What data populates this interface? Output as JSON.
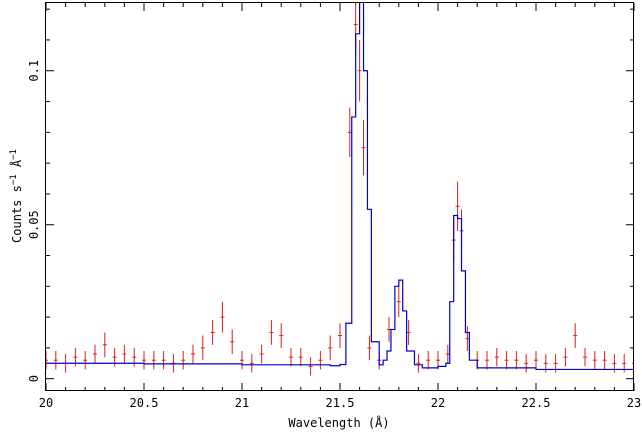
{
  "chart_data": {
    "type": "line",
    "xlabel": "Wavelength (Å)",
    "ylabel_parts": [
      "Counts s",
      "−1",
      " Å",
      "−1"
    ],
    "xlim": [
      20.0,
      23.0
    ],
    "ylim": [
      -0.004,
      0.122
    ],
    "xticks_major": [
      {
        "value": 20.0,
        "label": "20"
      },
      {
        "value": 20.5,
        "label": "20.5"
      },
      {
        "value": 21.0,
        "label": "21"
      },
      {
        "value": 21.5,
        "label": "21.5"
      },
      {
        "value": 22.0,
        "label": "22"
      },
      {
        "value": 22.5,
        "label": "22.5"
      },
      {
        "value": 23.0,
        "label": "23"
      }
    ],
    "yticks_major": [
      {
        "value": 0.0,
        "label": "0"
      },
      {
        "value": 0.05,
        "label": "0.05"
      },
      {
        "value": 0.1,
        "label": "0.1"
      }
    ],
    "grid": false,
    "series": [
      {
        "kind": "model",
        "color": "#0000cc",
        "x": [
          20.0,
          20.5,
          21.0,
          21.45,
          21.5,
          21.53,
          21.56,
          21.58,
          21.6,
          21.62,
          21.64,
          21.66,
          21.7,
          21.72,
          21.74,
          21.76,
          21.78,
          21.8,
          21.82,
          21.84,
          21.88,
          21.92,
          21.96,
          22.0,
          22.04,
          22.06,
          22.08,
          22.1,
          22.12,
          22.14,
          22.16,
          22.2,
          22.5,
          23.0
        ],
        "y": [
          0.005,
          0.0048,
          0.0045,
          0.0042,
          0.0046,
          0.018,
          0.085,
          0.112,
          0.125,
          0.1,
          0.055,
          0.012,
          0.0045,
          0.006,
          0.009,
          0.016,
          0.03,
          0.032,
          0.022,
          0.009,
          0.0045,
          0.0035,
          0.0035,
          0.004,
          0.005,
          0.025,
          0.053,
          0.052,
          0.035,
          0.015,
          0.006,
          0.0035,
          0.003,
          0.0025
        ]
      },
      {
        "kind": "data",
        "color": "#d62020",
        "x": [
          20.0,
          20.05,
          20.1,
          20.15,
          20.2,
          20.25,
          20.3,
          20.35,
          20.4,
          20.45,
          20.5,
          20.55,
          20.6,
          20.65,
          20.7,
          20.75,
          20.8,
          20.85,
          20.9,
          20.95,
          21.0,
          21.05,
          21.1,
          21.15,
          21.2,
          21.25,
          21.3,
          21.35,
          21.4,
          21.45,
          21.5,
          21.55,
          21.58,
          21.6,
          21.62,
          21.65,
          21.7,
          21.75,
          21.8,
          21.85,
          21.9,
          21.95,
          22.0,
          22.05,
          22.08,
          22.1,
          22.12,
          22.15,
          22.2,
          22.25,
          22.3,
          22.35,
          22.4,
          22.45,
          22.5,
          22.55,
          22.6,
          22.65,
          22.7,
          22.75,
          22.8,
          22.85,
          22.9,
          22.95,
          23.0
        ],
        "y": [
          0.006,
          0.006,
          0.005,
          0.007,
          0.006,
          0.008,
          0.011,
          0.007,
          0.008,
          0.007,
          0.006,
          0.006,
          0.006,
          0.005,
          0.006,
          0.008,
          0.01,
          0.015,
          0.02,
          0.012,
          0.006,
          0.005,
          0.008,
          0.015,
          0.014,
          0.007,
          0.007,
          0.004,
          0.006,
          0.01,
          0.014,
          0.08,
          0.115,
          0.1,
          0.075,
          0.01,
          0.006,
          0.016,
          0.025,
          0.015,
          0.005,
          0.006,
          0.006,
          0.008,
          0.045,
          0.056,
          0.048,
          0.013,
          0.006,
          0.006,
          0.007,
          0.006,
          0.006,
          0.005,
          0.006,
          0.005,
          0.005,
          0.007,
          0.014,
          0.007,
          0.006,
          0.006,
          0.005,
          0.005,
          0.005
        ],
        "err": [
          0.003,
          0.003,
          0.003,
          0.003,
          0.003,
          0.003,
          0.004,
          0.003,
          0.003,
          0.003,
          0.003,
          0.003,
          0.003,
          0.003,
          0.003,
          0.003,
          0.004,
          0.004,
          0.005,
          0.004,
          0.003,
          0.003,
          0.003,
          0.004,
          0.004,
          0.003,
          0.003,
          0.003,
          0.003,
          0.004,
          0.004,
          0.008,
          0.01,
          0.01,
          0.009,
          0.004,
          0.003,
          0.004,
          0.005,
          0.004,
          0.003,
          0.003,
          0.003,
          0.003,
          0.007,
          0.008,
          0.007,
          0.004,
          0.003,
          0.003,
          0.003,
          0.003,
          0.003,
          0.003,
          0.003,
          0.003,
          0.003,
          0.003,
          0.004,
          0.003,
          0.003,
          0.003,
          0.003,
          0.003,
          0.003
        ]
      }
    ]
  }
}
